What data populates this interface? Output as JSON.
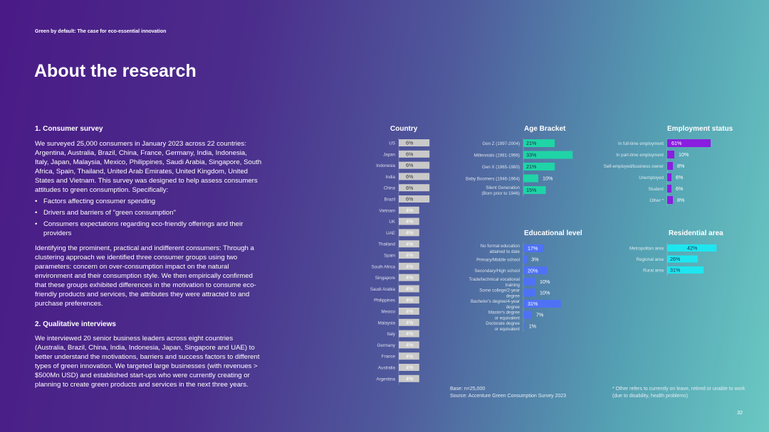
{
  "header": {
    "doc_label": "Green by default: The case for eco-essential innovation",
    "title": "About the research"
  },
  "consumer_survey": {
    "heading": "1. Consumer survey",
    "intro": "We surveyed 25,000 consumers in January 2023 across 22 countries: Argentina, Australia, Brazil, China, France, Germany, India, Indonesia, Italy, Japan, Malaysia, Mexico, Philippines, Saudi Arabia, Singapore, South Africa, Spain, Thailand, United Arab Emirates, United Kingdom, United States and Vietnam. This survey was designed to help assess consumers attitudes to green consumption. Specifically:",
    "bullets": [
      "Factors affecting consumer spending",
      "Drivers and barriers of \"green consumption\"",
      "Consumers expectations regarding eco-friendly offerings and their providers"
    ],
    "clusters": "Identifying the prominent, practical and indifferent consumers: Through a clustering approach we identified three consumer groups using two parameters: concern on over-consumption impact on the natural environment and their consumption style. We then empirically confirmed that these groups exhibited differences in the motivation to consume eco-friendly products and services, the attributes they were attracted to and purchase preferences."
  },
  "interviews": {
    "heading": "2. Qualitative interviews",
    "body": "We interviewed 20 senior business leaders across eight countries (Australia, Brazil, China, India, Indonesia, Japan, Singapore and UAE) to better understand the motivations, barriers and success factors to different types of green innovation. We targeted large businesses (with revenues > $500Mn USD) and established start-ups who were currently creating or planning to create green products and services in the next three years."
  },
  "footer": {
    "base": "Base: n=25,000",
    "source": "Source: Accenture Green Consumption Survey 2023",
    "note": "* Other refers to currently on leave, retired or unable to work (due to disability, health problems)",
    "page": "32"
  },
  "colors": {
    "country": "#c9c9c9",
    "age": "#1fd4a6",
    "employment": "#8a1de0",
    "education": "#4f72f5",
    "residential": "#1ee6f0"
  },
  "chart_data": [
    {
      "type": "bar",
      "title": "Country",
      "categories": [
        "US",
        "Japan",
        "Indonesia",
        "India",
        "China",
        "Brazil",
        "Vietnam",
        "UK",
        "UAE",
        "Thailand",
        "Spain",
        "South Africa",
        "Singapore",
        "Saudi Arabia",
        "Philippines",
        "Mexico",
        "Malaysia",
        "Italy",
        "Germany",
        "France",
        "Australia",
        "Argentina"
      ],
      "values": [
        6,
        6,
        6,
        6,
        6,
        6,
        4,
        4,
        4,
        4,
        4,
        4,
        4,
        4,
        4,
        4,
        4,
        4,
        4,
        4,
        4,
        4
      ],
      "labels": [
        "6%",
        "6%",
        "6%",
        "6%",
        "6%",
        "6%",
        "4%",
        "4%",
        "4%",
        "4%",
        "4%",
        "4%",
        "4%",
        "4%",
        "4%",
        "4%",
        "4%",
        "4%",
        "4%",
        "4%",
        "4%",
        "4%"
      ]
    },
    {
      "type": "bar",
      "title": "Age Bracket",
      "categories": [
        "Gen Z (1997-2004)",
        "Millennials (1981-1996)",
        "Gen X (1965-1980)",
        "Baby Boomers (1946-1964)",
        "Silent Generation (Born prior to 1946)"
      ],
      "values": [
        21,
        33,
        21,
        10,
        15
      ],
      "labels": [
        "21%",
        "33%",
        "21%",
        "10%",
        "15%"
      ]
    },
    {
      "type": "bar",
      "title": "Employment status",
      "categories": [
        "In full-time employment",
        "In part-time employment",
        "Self-employed/business owner",
        "Unemployed",
        "Student",
        "Other *"
      ],
      "values": [
        61,
        10,
        8,
        6,
        6,
        8
      ],
      "labels": [
        "61%",
        "10%",
        "8%",
        "6%",
        "6%",
        "8%"
      ]
    },
    {
      "type": "bar",
      "title": "Educational level",
      "categories": [
        "No formal education attained to date",
        "Primary/Middle school",
        "Secondary/High school",
        "Trade/technical vocational training",
        "Some college/2-year degree",
        "Bachelor's degree/4-year degree",
        "Master's degree or equivalent",
        "Doctorate degree or equivalent"
      ],
      "values": [
        17,
        3,
        20,
        10,
        10,
        31,
        7,
        1
      ],
      "labels": [
        "17%",
        "3%",
        "20%",
        "10%",
        "10%",
        "31%",
        "7%",
        "1%"
      ]
    },
    {
      "type": "bar",
      "title": "Residential area",
      "categories": [
        "Metropolitan area",
        "Regional area",
        "Rural area"
      ],
      "values": [
        42,
        26,
        31
      ],
      "labels": [
        "42%",
        "26%",
        "31%"
      ]
    }
  ]
}
